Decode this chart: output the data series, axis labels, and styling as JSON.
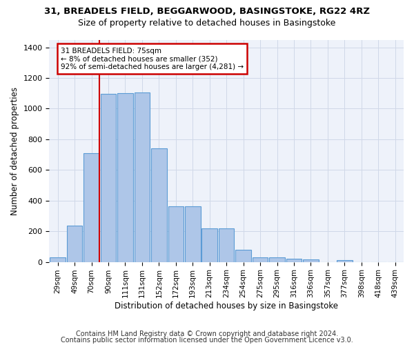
{
  "title1": "31, BREADELS FIELD, BEGGARWOOD, BASINGSTOKE, RG22 4RZ",
  "title2": "Size of property relative to detached houses in Basingstoke",
  "xlabel": "Distribution of detached houses by size in Basingstoke",
  "ylabel": "Number of detached properties",
  "categories": [
    "29sqm",
    "49sqm",
    "70sqm",
    "90sqm",
    "111sqm",
    "131sqm",
    "152sqm",
    "172sqm",
    "193sqm",
    "213sqm",
    "234sqm",
    "254sqm",
    "275sqm",
    "295sqm",
    "316sqm",
    "336sqm",
    "357sqm",
    "377sqm",
    "398sqm",
    "418sqm",
    "439sqm"
  ],
  "values": [
    30,
    235,
    710,
    1095,
    1100,
    1105,
    740,
    365,
    365,
    220,
    220,
    80,
    30,
    30,
    20,
    15,
    0,
    10,
    0,
    0,
    0
  ],
  "bar_color": "#aec6e8",
  "bar_edge_color": "#5b9bd5",
  "grid_color": "#d0d8e8",
  "bg_color": "#eef2fa",
  "vline_index": 2,
  "vline_color": "#cc0000",
  "annotation_line1": "31 BREADELS FIELD: 75sqm",
  "annotation_line2": "← 8% of detached houses are smaller (352)",
  "annotation_line3": "92% of semi-detached houses are larger (4,281) →",
  "annotation_box_color": "#cc0000",
  "footer1": "Contains HM Land Registry data © Crown copyright and database right 2024.",
  "footer2": "Contains public sector information licensed under the Open Government Licence v3.0.",
  "ylim": [
    0,
    1450
  ],
  "yticks": [
    0,
    200,
    400,
    600,
    800,
    1000,
    1200,
    1400
  ]
}
